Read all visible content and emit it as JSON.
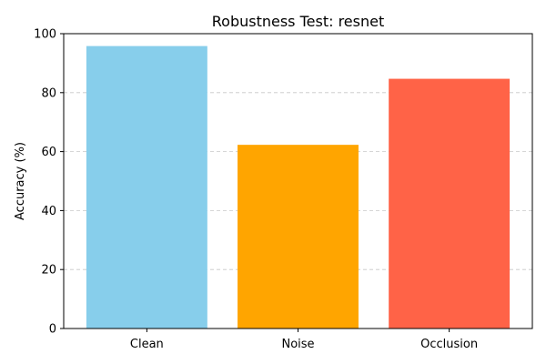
{
  "chart_data": {
    "type": "bar",
    "title": "Robustness Test: resnet",
    "xlabel": "",
    "ylabel": "Accuracy (%)",
    "categories": [
      "Clean",
      "Noise",
      "Occlusion"
    ],
    "values": [
      95.8,
      62.3,
      84.7
    ],
    "colors": [
      "#87CEEB",
      "#FFA500",
      "#FF6347"
    ],
    "ylim": [
      0,
      100
    ],
    "yticks": [
      0,
      20,
      40,
      60,
      80,
      100
    ],
    "grid": "y-dashed",
    "legend": "none"
  }
}
